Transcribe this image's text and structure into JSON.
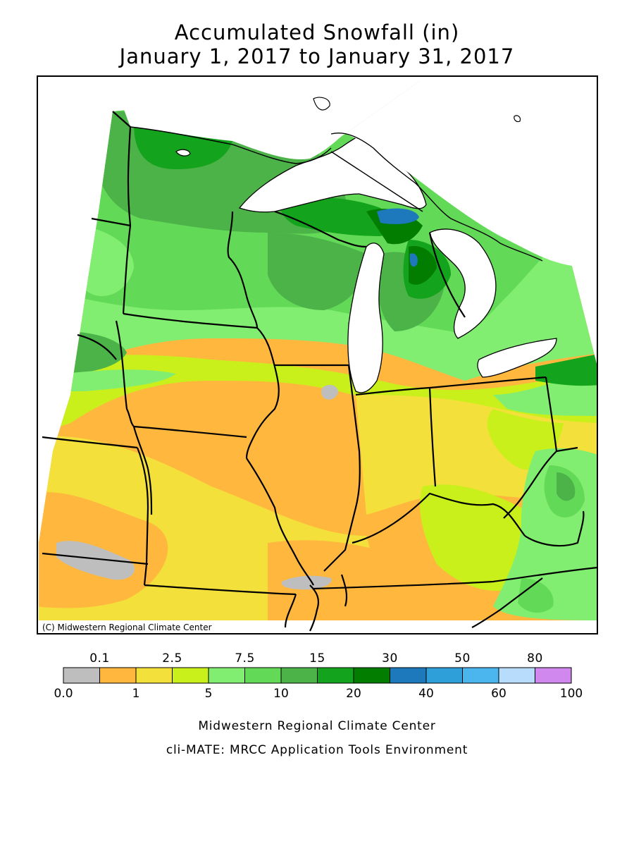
{
  "title": {
    "line1": "Accumulated Snowfall (in)",
    "line2": "January 1, 2017 to January 31, 2017"
  },
  "map": {
    "copyright": "(C) Midwestern Regional Climate Center",
    "region": "Upper Midwest / Great Lakes",
    "colors": {
      "gray": "#bebebe",
      "orange": "#ffb73e",
      "yellow": "#f3e03b",
      "lime": "#c9f01a",
      "lightgreen": "#81ee72",
      "green1": "#63da57",
      "green2": "#4cb348",
      "green3": "#14a31d",
      "darkgreen": "#037d00",
      "blue1": "#1d78bc",
      "water": "#ffffff"
    }
  },
  "legend": {
    "top_labels": [
      "0.1",
      "2.5",
      "7.5",
      "15",
      "30",
      "50",
      "80"
    ],
    "bottom_labels": [
      "0.0",
      "1",
      "5",
      "10",
      "20",
      "40",
      "60",
      "100"
    ],
    "colors": [
      "#bebebe",
      "#ffb73e",
      "#f3e03b",
      "#c9f01a",
      "#81ee72",
      "#63da57",
      "#4cb348",
      "#14a31d",
      "#037d00",
      "#1d78bc",
      "#2f9fd9",
      "#4bb5ee",
      "#b8dcfb",
      "#d088ee"
    ]
  },
  "footer": {
    "line1": "Midwestern Regional Climate Center",
    "line2": "cli-MATE: MRCC Application Tools Environment"
  }
}
